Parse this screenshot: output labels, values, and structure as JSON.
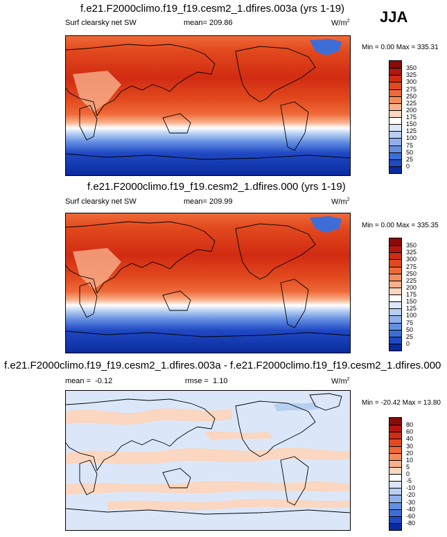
{
  "season_label": "JJA",
  "panels": [
    {
      "title": "f.e21.F2000climo.f19_f19.cesm2_1.dfires.003a (yrs 1-19)",
      "field_label": "Surf clearsky net SW",
      "mean_label": "mean=",
      "mean_value": "209.86",
      "units": "W/m",
      "units_sup": "2",
      "minmax_text": "Min =   0.00 Max = 335.31",
      "colorbar": {
        "tick_labels": [
          "350",
          "325",
          "300",
          "275",
          "250",
          "225",
          "200",
          "175",
          "150",
          "125",
          "100",
          "75",
          "50",
          "25",
          "0"
        ],
        "colors": [
          "#8a0a0a",
          "#b3160f",
          "#d12b12",
          "#e24a1e",
          "#ef6a39",
          "#f58c5e",
          "#f9b08c",
          "#fbd6c0",
          "#ffffff",
          "#dbe7f9",
          "#b7cff3",
          "#8fb0ec",
          "#6590e2",
          "#3d6ed8",
          "#2049c4",
          "#0a2b9e"
        ]
      },
      "chart_data": {
        "type": "heatmap",
        "title": "f.e21.F2000climo.f19_f19.cesm2_1.dfires.003a (yrs 1-19)",
        "variable": "Surf clearsky net SW",
        "units": "W/m2",
        "mean": 209.86,
        "min": 0.0,
        "max": 335.31,
        "contour_levels": [
          0,
          25,
          50,
          75,
          100,
          125,
          150,
          175,
          200,
          225,
          250,
          275,
          300,
          325,
          350
        ]
      }
    },
    {
      "title": "f.e21.F2000climo.f19_f19.cesm2_1.dfires.000 (yrs 1-19)",
      "field_label": "Surf clearsky net SW",
      "mean_label": "mean=",
      "mean_value": "209.99",
      "units": "W/m",
      "units_sup": "2",
      "minmax_text": "Min =   0.00 Max = 335.35",
      "colorbar": {
        "tick_labels": [
          "350",
          "325",
          "300",
          "275",
          "250",
          "225",
          "200",
          "175",
          "150",
          "125",
          "100",
          "75",
          "50",
          "25",
          "0"
        ],
        "colors": [
          "#8a0a0a",
          "#b3160f",
          "#d12b12",
          "#e24a1e",
          "#ef6a39",
          "#f58c5e",
          "#f9b08c",
          "#fbd6c0",
          "#ffffff",
          "#dbe7f9",
          "#b7cff3",
          "#8fb0ec",
          "#6590e2",
          "#3d6ed8",
          "#2049c4",
          "#0a2b9e"
        ]
      },
      "chart_data": {
        "type": "heatmap",
        "title": "f.e21.F2000climo.f19_f19.cesm2_1.dfires.000 (yrs 1-19)",
        "variable": "Surf clearsky net SW",
        "units": "W/m2",
        "mean": 209.99,
        "min": 0.0,
        "max": 335.35,
        "contour_levels": [
          0,
          25,
          50,
          75,
          100,
          125,
          150,
          175,
          200,
          225,
          250,
          275,
          300,
          325,
          350
        ]
      }
    },
    {
      "title": "f.e21.F2000climo.f19_f19.cesm2_1.dfires.003a - f.e21.F2000climo.f19_f19.cesm2_1.dfires.000",
      "mean_label": "mean =",
      "mean_value": "-0.12",
      "rmse_label": "rmse =",
      "rmse_value": "1.10",
      "units": "W/m",
      "units_sup": "2",
      "minmax_text": "Min = -20.42 Max =  13.80",
      "colorbar": {
        "tick_labels": [
          "80",
          "60",
          "40",
          "30",
          "20",
          "10",
          "5",
          "0",
          "-5",
          "-10",
          "-20",
          "-30",
          "-40",
          "-60",
          "-80"
        ],
        "colors": [
          "#8a0a0a",
          "#b3160f",
          "#d12b12",
          "#e24a1e",
          "#ef6a39",
          "#f58c5e",
          "#f9b08c",
          "#fbd6c0",
          "#ffffff",
          "#dbe7f9",
          "#b7cff3",
          "#8fb0ec",
          "#6590e2",
          "#3d6ed8",
          "#2049c4",
          "#0a2b9e"
        ]
      },
      "chart_data": {
        "type": "heatmap",
        "title": "f.e21.F2000climo.f19_f19.cesm2_1.dfires.003a - f.e21.F2000climo.f19_f19.cesm2_1.dfires.000",
        "units": "W/m2",
        "mean": -0.12,
        "rmse": 1.1,
        "min": -20.42,
        "max": 13.8,
        "contour_levels": [
          -80,
          -60,
          -40,
          -30,
          -20,
          -10,
          -5,
          0,
          5,
          10,
          20,
          30,
          40,
          60,
          80
        ]
      }
    }
  ]
}
